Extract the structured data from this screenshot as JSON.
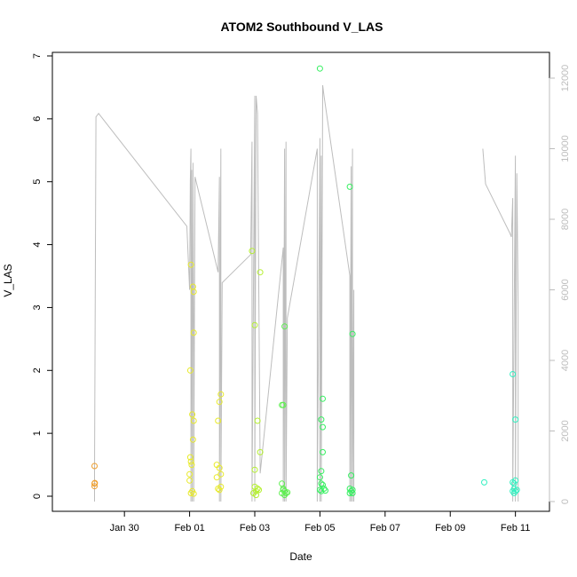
{
  "chart_data": {
    "type": "scatter",
    "title": "ATOM2 Southbound V_LAS",
    "xlabel": "Date",
    "ylabel": "V_LAS",
    "x_tick_labels": [
      "Jan 30",
      "Feb 01",
      "Feb 03",
      "Feb 05",
      "Feb 07",
      "Feb 09",
      "Feb 11"
    ],
    "x_range": [
      "2024-01-28 08:00",
      "2024-02-11 12:00"
    ],
    "ylim": [
      0,
      7
    ],
    "y_ticks": [
      0,
      1,
      2,
      3,
      4,
      5,
      6,
      7
    ],
    "secondary_axis": {
      "side": "right",
      "ylim": [
        0,
        12000
      ],
      "ticks": [
        0,
        2000,
        4000,
        6000,
        8000,
        10000,
        12000
      ],
      "color": "#bdbdbd"
    },
    "grid": false,
    "legend": "none",
    "colors": {
      "orange": "#f0a030",
      "yellow": "#e8ea2a",
      "yellowgreen": "#b5f030",
      "green": "#5ef050",
      "green2": "#35f060",
      "teal": "#32f0c0",
      "line": "#bdbdbd"
    },
    "series": [
      {
        "color": "#f0a030",
        "points": [
          [
            "2024-01-29 02:00",
            0.48
          ],
          [
            "2024-01-29 02:00",
            0.2
          ],
          [
            "2024-01-29 02:00",
            0.16
          ],
          [
            "2024-01-29 02:10",
            0.21
          ]
        ]
      },
      {
        "color": "#e8ea2a",
        "points": [
          [
            "2024-02-01 00:00",
            0.35
          ],
          [
            "2024-02-01 00:00",
            0.25
          ],
          [
            "2024-02-01 00:30",
            2.0
          ],
          [
            "2024-02-01 00:30",
            0.62
          ],
          [
            "2024-02-01 01:00",
            3.68
          ],
          [
            "2024-02-01 01:00",
            0.55
          ],
          [
            "2024-02-01 01:30",
            0.5
          ],
          [
            "2024-02-01 02:00",
            1.3
          ],
          [
            "2024-02-01 02:30",
            3.33
          ],
          [
            "2024-02-01 03:00",
            3.25
          ],
          [
            "2024-02-01 03:00",
            2.6
          ],
          [
            "2024-02-01 03:00",
            1.2
          ],
          [
            "2024-02-01 02:30",
            0.9
          ],
          [
            "2024-02-01 01:00",
            0.05
          ],
          [
            "2024-02-01 02:00",
            0.08
          ],
          [
            "2024-02-01 03:00",
            0.04
          ],
          [
            "2024-02-01 20:00",
            0.5
          ],
          [
            "2024-02-01 20:00",
            0.3
          ],
          [
            "2024-02-01 21:00",
            1.2
          ],
          [
            "2024-02-01 21:00",
            0.12
          ],
          [
            "2024-02-01 22:00",
            1.5
          ],
          [
            "2024-02-01 23:00",
            1.62
          ],
          [
            "2024-02-01 22:00",
            0.45
          ],
          [
            "2024-02-01 23:00",
            0.35
          ],
          [
            "2024-02-01 22:00",
            0.1
          ],
          [
            "2024-02-01 23:00",
            0.15
          ]
        ]
      },
      {
        "color": "#b5f030",
        "points": [
          [
            "2024-02-02 22:00",
            3.9
          ],
          [
            "2024-02-03 00:00",
            2.72
          ],
          [
            "2024-02-03 02:00",
            1.2
          ],
          [
            "2024-02-03 04:00",
            3.56
          ],
          [
            "2024-02-03 04:00",
            0.7
          ],
          [
            "2024-02-03 00:00",
            0.42
          ],
          [
            "2024-02-03 00:00",
            0.15
          ],
          [
            "2024-02-03 01:00",
            0.08
          ],
          [
            "2024-02-03 01:00",
            0.02
          ],
          [
            "2024-02-03 02:00",
            0.12
          ],
          [
            "2024-02-02 23:00",
            0.05
          ],
          [
            "2024-02-03 03:00",
            0.1
          ]
        ]
      },
      {
        "color": "#5ef050",
        "points": [
          [
            "2024-02-03 20:00",
            1.45
          ],
          [
            "2024-02-03 21:00",
            1.45
          ],
          [
            "2024-02-03 22:00",
            2.7
          ],
          [
            "2024-02-03 20:00",
            0.2
          ],
          [
            "2024-02-03 21:00",
            0.12
          ],
          [
            "2024-02-03 22:00",
            0.08
          ],
          [
            "2024-02-03 23:00",
            0.05
          ],
          [
            "2024-02-03 20:00",
            0.05
          ],
          [
            "2024-02-03 22:00",
            0.02
          ],
          [
            "2024-02-04 00:00",
            0.06
          ],
          [
            "2024-02-03 21:00",
            0.1
          ]
        ]
      },
      {
        "color": "#35f060",
        "points": [
          [
            "2024-02-05 00:00",
            6.8
          ],
          [
            "2024-02-05 02:00",
            1.55
          ],
          [
            "2024-02-05 01:00",
            1.22
          ],
          [
            "2024-02-05 02:00",
            1.1
          ],
          [
            "2024-02-05 02:00",
            0.7
          ],
          [
            "2024-02-05 01:00",
            0.4
          ],
          [
            "2024-02-05 00:00",
            0.3
          ],
          [
            "2024-02-05 01:00",
            0.2
          ],
          [
            "2024-02-05 02:00",
            0.18
          ],
          [
            "2024-02-05 00:00",
            0.1
          ],
          [
            "2024-02-05 01:00",
            0.08
          ],
          [
            "2024-02-05 03:00",
            0.12
          ],
          [
            "2024-02-05 04:00",
            0.09
          ],
          [
            "2024-02-05 22:00",
            4.92
          ],
          [
            "2024-02-06 00:00",
            2.58
          ],
          [
            "2024-02-05 23:00",
            0.33
          ],
          [
            "2024-02-05 22:00",
            0.12
          ],
          [
            "2024-02-05 23:00",
            0.08
          ],
          [
            "2024-02-06 00:00",
            0.1
          ],
          [
            "2024-02-05 22:00",
            0.05
          ],
          [
            "2024-02-06 00:00",
            0.05
          ]
        ]
      },
      {
        "color": "#32f0c0",
        "points": [
          [
            "2024-02-10 01:00",
            0.22
          ],
          [
            "2024-02-10 22:00",
            1.94
          ],
          [
            "2024-02-11 00:00",
            1.22
          ],
          [
            "2024-02-10 22:00",
            0.22
          ],
          [
            "2024-02-10 23:00",
            0.2
          ],
          [
            "2024-02-11 00:00",
            0.25
          ],
          [
            "2024-02-10 22:00",
            0.08
          ],
          [
            "2024-02-10 23:00",
            0.05
          ],
          [
            "2024-02-11 00:00",
            0.08
          ],
          [
            "2024-02-11 01:00",
            0.1
          ],
          [
            "2024-02-10 23:00",
            0.12
          ]
        ]
      }
    ],
    "secondary_line": [
      [
        "2024-01-29 02:00",
        0
      ],
      [
        "2024-01-29 02:00",
        800
      ],
      [
        "2024-01-29 03:00",
        10900
      ],
      [
        "2024-01-29 05:00",
        11000
      ],
      [
        "2024-01-31 22:00",
        7800
      ],
      [
        "2024-02-01 00:00",
        6000
      ],
      [
        "2024-02-01 00:30",
        9100
      ],
      [
        "2024-02-01 01:00",
        10000
      ],
      [
        "2024-02-01 01:00",
        0
      ],
      [
        "2024-02-01 01:30",
        9400
      ],
      [
        "2024-02-01 02:00",
        0
      ],
      [
        "2024-02-01 02:30",
        9600
      ],
      [
        "2024-02-01 03:00",
        4000
      ],
      [
        "2024-02-01 03:00",
        0
      ],
      [
        "2024-02-01 04:00",
        9200
      ],
      [
        "2024-02-01 21:00",
        6500
      ],
      [
        "2024-02-01 22:00",
        9200
      ],
      [
        "2024-02-01 22:00",
        0
      ],
      [
        "2024-02-01 23:00",
        10000
      ],
      [
        "2024-02-01 23:00",
        0
      ],
      [
        "2024-02-02 00:00",
        6200
      ],
      [
        "2024-02-02 21:00",
        7000
      ],
      [
        "2024-02-02 22:00",
        10200
      ],
      [
        "2024-02-02 22:00",
        0
      ],
      [
        "2024-02-03 00:00",
        11500
      ],
      [
        "2024-02-03 00:00",
        0
      ],
      [
        "2024-02-03 01:00",
        11500
      ],
      [
        "2024-02-03 02:00",
        11000
      ],
      [
        "2024-02-03 03:00",
        5800
      ],
      [
        "2024-02-03 04:00",
        800
      ],
      [
        "2024-02-03 21:00",
        7200
      ],
      [
        "2024-02-03 21:00",
        0
      ],
      [
        "2024-02-03 22:00",
        10000
      ],
      [
        "2024-02-03 22:00",
        0
      ],
      [
        "2024-02-03 23:00",
        10200
      ],
      [
        "2024-02-03 23:00",
        0
      ],
      [
        "2024-02-04 00:00",
        5200
      ],
      [
        "2024-02-04 22:00",
        10000
      ],
      [
        "2024-02-04 22:00",
        0
      ],
      [
        "2024-02-05 00:00",
        10300
      ],
      [
        "2024-02-05 00:00",
        0
      ],
      [
        "2024-02-05 01:00",
        9800
      ],
      [
        "2024-02-05 01:00",
        0
      ],
      [
        "2024-02-05 02:00",
        11800
      ],
      [
        "2024-02-05 03:00",
        11500
      ],
      [
        "2024-02-05 22:00",
        6400
      ],
      [
        "2024-02-05 22:00",
        0
      ],
      [
        "2024-02-05 23:00",
        9500
      ],
      [
        "2024-02-05 23:00",
        0
      ],
      [
        "2024-02-06 00:00",
        10000
      ],
      [
        "2024-02-06 00:00",
        0
      ],
      [
        "2024-02-06 01:00",
        6000
      ],
      [
        "2024-02-06 01:00",
        0
      ]
    ],
    "secondary_line_2": [
      [
        "2024-02-10 00:00",
        10000
      ],
      [
        "2024-02-10 02:00",
        9000
      ],
      [
        "2024-02-10 20:00",
        7600
      ],
      [
        "2024-02-10 21:00",
        7500
      ],
      [
        "2024-02-10 22:00",
        8600
      ],
      [
        "2024-02-10 22:00",
        0
      ],
      [
        "2024-02-11 00:00",
        9800
      ],
      [
        "2024-02-11 00:00",
        0
      ],
      [
        "2024-02-11 01:00",
        9300
      ],
      [
        "2024-02-11 02:00",
        5600
      ],
      [
        "2024-02-11 02:00",
        0
      ]
    ]
  }
}
